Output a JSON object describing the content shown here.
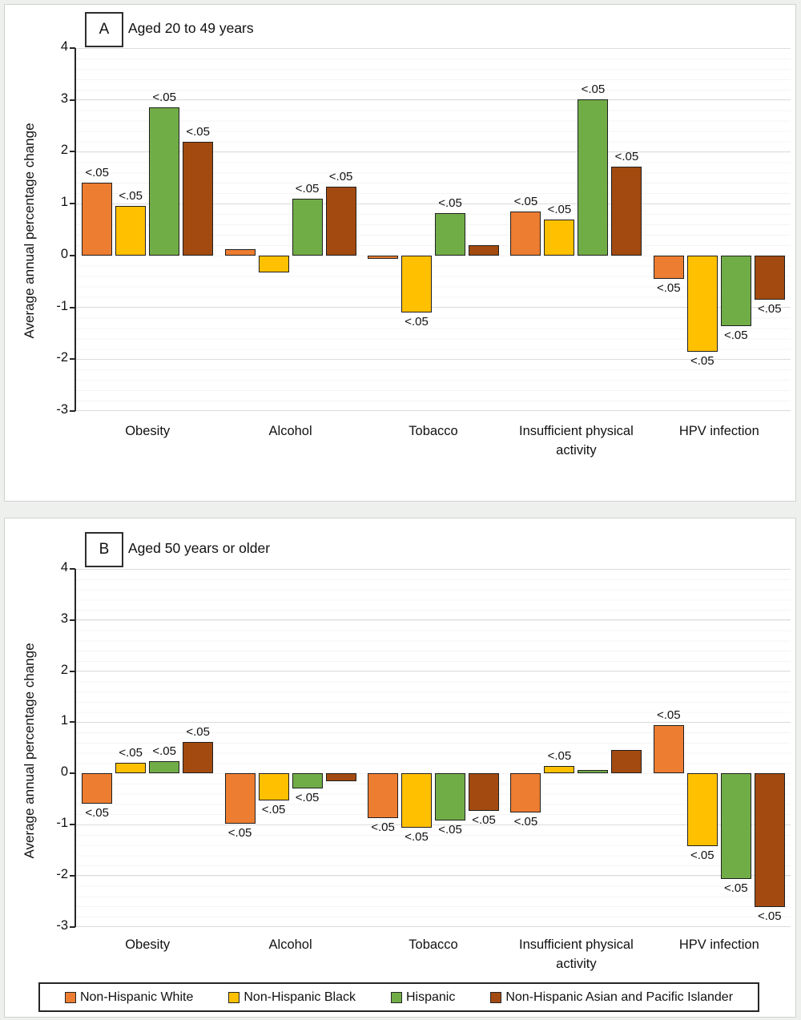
{
  "figure": {
    "sig_label": "<.05",
    "colors": {
      "non_hispanic_white": "#ED7D31",
      "non_hispanic_black": "#FFC000",
      "hispanic": "#70AD47",
      "non_hispanic_asian_pacific_islander": "#A24A10",
      "bar_outline": "#1f1f1f",
      "gridline": "#dcdcdc",
      "zero_line": "#000000"
    }
  },
  "legend": {
    "items": [
      {
        "label": "Non-Hispanic White",
        "color": "#ED7D31"
      },
      {
        "label": "Non-Hispanic Black",
        "color": "#FFC000"
      },
      {
        "label": "Hispanic",
        "color": "#70AD47"
      },
      {
        "label": "Non-Hispanic Asian and Pacific Islander",
        "color": "#A24A10"
      }
    ]
  },
  "chart_data": [
    {
      "type": "bar",
      "panel": "A",
      "title": "Aged 20 to 49 years",
      "xlabel": "",
      "ylabel": "Average annual percentage change",
      "ylim": [
        -3,
        4
      ],
      "yticks": [
        4,
        3,
        2,
        1,
        0,
        -1,
        -2,
        -3
      ],
      "grid": "horizontal-major-and-faint-minor",
      "legend_position": "shared-bottom-box",
      "categories": [
        "Obesity",
        "Alcohol",
        "Tobacco",
        "Insufficient physical activity",
        "HPV infection"
      ],
      "series": [
        {
          "name": "Non-Hispanic White",
          "color": "#ED7D31",
          "values": [
            1.4,
            0.12,
            -0.07,
            0.85,
            -0.45
          ],
          "sig": [
            true,
            false,
            false,
            true,
            true
          ]
        },
        {
          "name": "Non-Hispanic Black",
          "color": "#FFC000",
          "values": [
            0.96,
            -0.33,
            -1.1,
            0.7,
            -1.86
          ],
          "sig": [
            true,
            false,
            true,
            true,
            true
          ]
        },
        {
          "name": "Hispanic",
          "color": "#70AD47",
          "values": [
            2.85,
            1.09,
            0.82,
            3.01,
            -1.37
          ],
          "sig": [
            true,
            true,
            true,
            true,
            true
          ]
        },
        {
          "name": "Non-Hispanic Asian and Pacific Islander",
          "color": "#A24A10",
          "values": [
            2.19,
            1.33,
            0.2,
            1.71,
            -0.85
          ],
          "sig": [
            true,
            true,
            false,
            true,
            true
          ]
        }
      ]
    },
    {
      "type": "bar",
      "panel": "B",
      "title": "Aged 50 years or older",
      "xlabel": "",
      "ylabel": "Average annual percentage change",
      "ylim": [
        -3,
        4
      ],
      "yticks": [
        4,
        3,
        2,
        1,
        0,
        -1,
        -2,
        -3
      ],
      "grid": "horizontal-major-and-faint-minor",
      "legend_position": "shared-bottom-box",
      "categories": [
        "Obesity",
        "Alcohol",
        "Tobacco",
        "Insufficient physical activity",
        "HPV infection"
      ],
      "series": [
        {
          "name": "Non-Hispanic White",
          "color": "#ED7D31",
          "values": [
            -0.59,
            -0.98,
            -0.88,
            -0.77,
            0.94
          ],
          "sig": [
            true,
            true,
            true,
            true,
            true
          ]
        },
        {
          "name": "Non-Hispanic Black",
          "color": "#FFC000",
          "values": [
            0.21,
            -0.53,
            -1.07,
            0.14,
            -1.42
          ],
          "sig": [
            true,
            true,
            true,
            true,
            true
          ]
        },
        {
          "name": "Hispanic",
          "color": "#70AD47",
          "values": [
            0.24,
            -0.3,
            -0.92,
            0.06,
            -2.07
          ],
          "sig": [
            true,
            true,
            true,
            false,
            true
          ]
        },
        {
          "name": "Non-Hispanic Asian and Pacific Islander",
          "color": "#A24A10",
          "values": [
            0.62,
            -0.16,
            -0.73,
            0.46,
            -2.62
          ],
          "sig": [
            true,
            false,
            true,
            false,
            true
          ]
        }
      ]
    }
  ]
}
